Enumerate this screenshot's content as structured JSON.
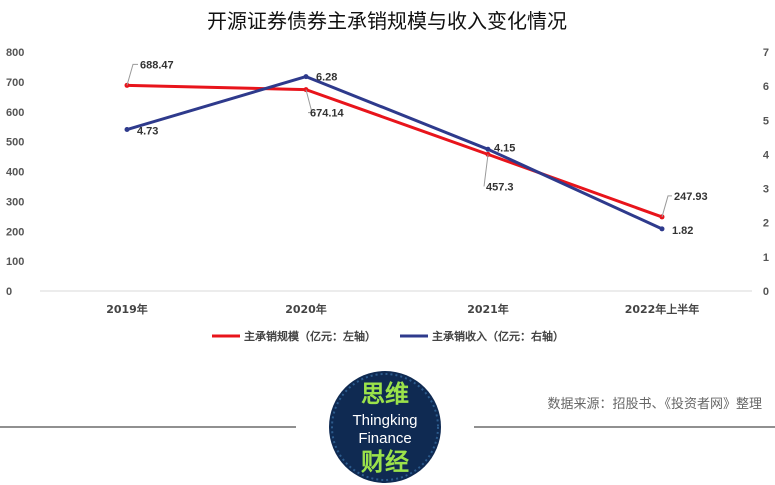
{
  "colors": {
    "series_left": "#e8141b",
    "series_right": "#2e3a8c",
    "logo_bg": "#0f2a52",
    "logo_text_green": "#9be24a"
  },
  "chart_data": {
    "type": "line",
    "title": "开源证券债券主承销规模与收入变化情况",
    "categories": [
      "2019年",
      "2020年",
      "2021年",
      "2022年上半年"
    ],
    "series": [
      {
        "name": "主承销规模（亿元：左轴）",
        "axis": "left",
        "values": [
          688.47,
          674.14,
          457.3,
          247.93
        ],
        "labels": [
          "688.47",
          "674.14",
          "457.3",
          "247.93"
        ]
      },
      {
        "name": "主承销收入（亿元：右轴）",
        "axis": "right",
        "values": [
          4.73,
          6.28,
          4.15,
          1.82
        ],
        "labels": [
          "4.73",
          "6.28",
          "4.15",
          "1.82"
        ]
      }
    ],
    "ylim_left": [
      0,
      800
    ],
    "yticks_left": [
      "0",
      "100",
      "200",
      "300",
      "400",
      "500",
      "600",
      "700",
      "800"
    ],
    "ylim_right": [
      0,
      7
    ],
    "yticks_right": [
      "0",
      "1",
      "2",
      "3",
      "4",
      "5",
      "6",
      "7"
    ],
    "grid": false,
    "legend_position": "bottom"
  },
  "footer": {
    "source": "数据来源：招股书、《投资者网》整理",
    "logo_line1": "思维",
    "logo_line2": "Thingking",
    "logo_line3": "Finance",
    "logo_line4": "财经"
  }
}
